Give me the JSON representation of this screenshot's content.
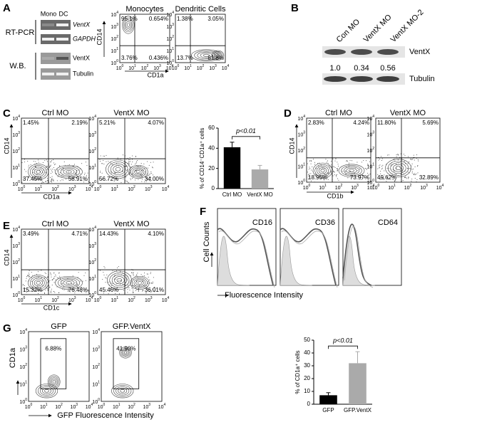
{
  "log_tick": {
    "base": "10",
    "exps": [
      "0",
      "1",
      "2",
      "3",
      "4"
    ]
  },
  "panels": {
    "A": {
      "label": "A",
      "gel": {
        "lanes": [
          "Mono",
          "DC"
        ],
        "groups": [
          {
            "name": "RT-PCR",
            "bands": [
              "VentX",
              "GAPDH"
            ]
          },
          {
            "name": "W.B.",
            "bands": [
              "VentX",
              "Tubulin"
            ]
          }
        ]
      },
      "ylabel": "CD14",
      "xlabel": "CD1a",
      "plots": [
        {
          "title": "Monocytes",
          "quad": [
            "95.1%",
            "0.654%",
            "3.76%",
            "0.436%"
          ]
        },
        {
          "title": "Dendritic Cells",
          "quad": [
            "1.38%",
            "3.05%",
            "13.7%",
            "81.8%"
          ]
        }
      ]
    },
    "B": {
      "label": "B",
      "lanes": [
        "Con MO",
        "VentX MO",
        "VentX MO-2"
      ],
      "bands": [
        "VentX",
        "Tubulin"
      ],
      "ratios": [
        "1.0",
        "0.34",
        "0.56"
      ]
    },
    "C": {
      "label": "C",
      "ylabel": "CD14",
      "xlabel": "CD1a",
      "plots": [
        {
          "title": "Ctrl MO",
          "quad": [
            "1.45%",
            "2.19%",
            "37.45%",
            "58.91%"
          ]
        },
        {
          "title": "VentX MO",
          "quad": [
            "5.21%",
            "4.07%",
            "56.72%",
            "34.00%"
          ]
        }
      ]
    },
    "D": {
      "label": "D",
      "ylabel": "CD14",
      "xlabel": "CD1b",
      "plots": [
        {
          "title": "Ctrl MO",
          "quad": [
            "2.83%",
            "4.24%",
            "18.95%",
            "73.97%"
          ]
        },
        {
          "title": "VentX MO",
          "quad": [
            "11.80%",
            "5.69%",
            "49.62%",
            "32.89%"
          ]
        }
      ]
    },
    "E": {
      "label": "E",
      "ylabel": "CD14",
      "xlabel": "CD1c",
      "plots": [
        {
          "title": "Ctrl MO",
          "quad": [
            "3.49%",
            "4.71%",
            "15.32%",
            "76.48%"
          ]
        },
        {
          "title": "VentX MO",
          "quad": [
            "14.43%",
            "4.10%",
            "45.46%",
            "36.01%"
          ]
        }
      ]
    },
    "F": {
      "label": "F",
      "ylabel": "Cell Counts",
      "xlabel": "Fluorescence Intensity",
      "markers": [
        "CD16",
        "CD36",
        "CD64"
      ]
    },
    "G": {
      "label": "G",
      "ylabel": "CD1a",
      "xlabel": "GFP Fluorescence Intensity",
      "plots": [
        {
          "title": "GFP",
          "gate": "6.88%"
        },
        {
          "title": "GFP.VentX",
          "gate": "41.90%"
        }
      ]
    }
  },
  "chart_data": [
    {
      "type": "bar",
      "ylabel": "% of CD14⁻CD1a⁺ cells",
      "categories": [
        "Ctrl MO",
        "VentX MO"
      ],
      "values": [
        41,
        19
      ],
      "errors": [
        5,
        4
      ],
      "colors": [
        "#000000",
        "#aaaaaa"
      ],
      "ylim": [
        0,
        60
      ],
      "yticks": [
        0,
        20,
        40,
        60
      ],
      "annotation": "p<0.01"
    },
    {
      "type": "bar",
      "ylabel": "% of CD1a⁺ cells",
      "categories": [
        "GFP",
        "GFP.VentX"
      ],
      "values": [
        7,
        32
      ],
      "errors": [
        2,
        9
      ],
      "colors": [
        "#000000",
        "#aaaaaa"
      ],
      "ylim": [
        0,
        50
      ],
      "yticks": [
        0,
        10,
        20,
        30,
        40,
        50
      ],
      "annotation": "p<0.01"
    }
  ]
}
